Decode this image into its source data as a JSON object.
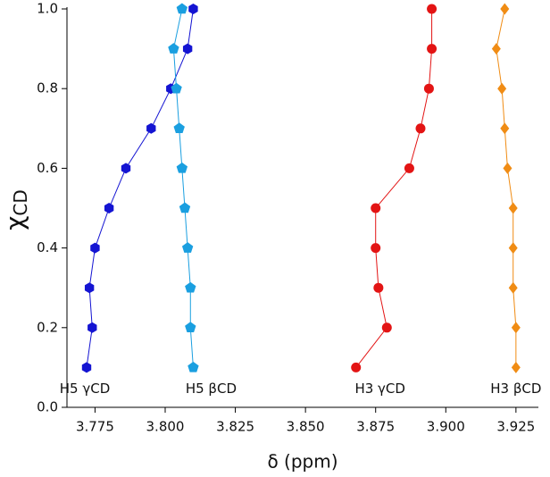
{
  "chart_data": {
    "type": "scatter-line",
    "xlabel": "δ (ppm)",
    "ylabel": "χ",
    "ylabel_subscript": "CD",
    "xlim": [
      3.765,
      3.933
    ],
    "ylim": [
      0,
      1
    ],
    "xticks": [
      3.775,
      {
        "value": 3.8,
        "label": "3.800"
      },
      3.825,
      {
        "value": 3.85,
        "label": "3.850"
      },
      3.875,
      {
        "value": 3.9,
        "label": "3.900"
      },
      3.925
    ],
    "yticks": [
      {
        "value": 0,
        "label": "0.0"
      },
      0.2,
      0.4,
      0.6,
      0.8,
      {
        "value": 1,
        "label": "1.0"
      }
    ],
    "series": [
      {
        "name": "H5 γCD",
        "color": "#1414d2",
        "marker": "hexagon",
        "x": [
          3.772,
          3.774,
          3.773,
          3.775,
          3.78,
          3.786,
          3.795,
          3.802,
          3.808,
          3.81
        ],
        "values": [
          0.1,
          0.2,
          0.3,
          0.4,
          0.5,
          0.6,
          0.7,
          0.8,
          0.9,
          1.0
        ]
      },
      {
        "name": "H5 βCD",
        "color": "#1a9fe0",
        "marker": "pentagon",
        "x": [
          3.81,
          3.809,
          3.809,
          3.808,
          3.807,
          3.806,
          3.805,
          3.804,
          3.803,
          3.806
        ],
        "values": [
          0.1,
          0.2,
          0.3,
          0.4,
          0.5,
          0.6,
          0.7,
          0.8,
          0.9,
          1.0
        ]
      },
      {
        "name": "H3 γCD",
        "color": "#e31414",
        "marker": "circle",
        "x": [
          3.868,
          3.879,
          3.876,
          3.875,
          3.875,
          3.887,
          3.891,
          3.894,
          3.895,
          3.895
        ],
        "values": [
          0.1,
          0.2,
          0.3,
          0.4,
          0.5,
          0.6,
          0.7,
          0.8,
          0.9,
          1.0
        ]
      },
      {
        "name": "H3 βCD",
        "color": "#f08c14",
        "marker": "diamond",
        "x": [
          3.925,
          3.925,
          3.924,
          3.924,
          3.924,
          3.922,
          3.921,
          3.92,
          3.918,
          3.921
        ],
        "values": [
          0.1,
          0.2,
          0.3,
          0.4,
          0.5,
          0.6,
          0.7,
          0.8,
          0.9,
          1.0
        ]
      }
    ]
  }
}
